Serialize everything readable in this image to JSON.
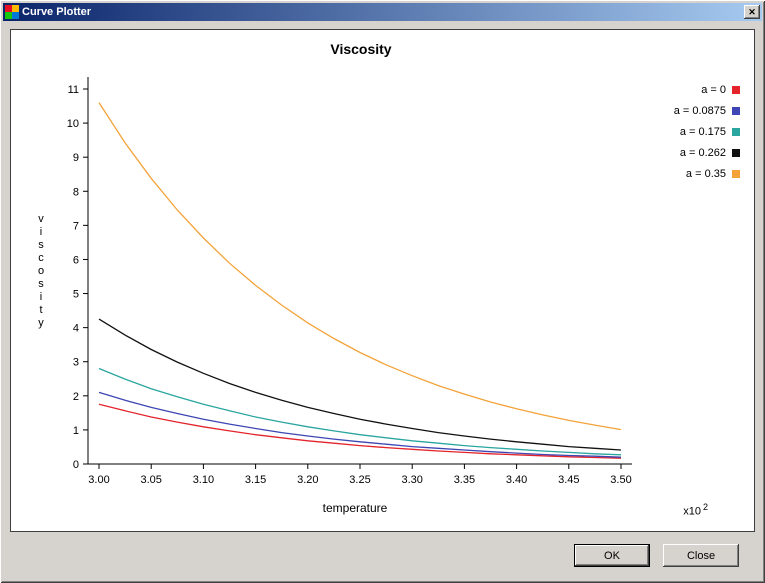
{
  "window": {
    "title": "Curve Plotter",
    "close_glyph": "✕"
  },
  "buttons": {
    "ok_label": "OK",
    "close_label": "Close"
  },
  "chart_data": {
    "type": "line",
    "title": "Viscosity",
    "xlabel": "temperature",
    "ylabel": "viscosity",
    "x_scale_label": "x10",
    "x_scale_exponent": "2",
    "xlim": [
      3.0,
      3.5
    ],
    "ylim": [
      0,
      11
    ],
    "grid": false,
    "legend_position": "outside-top-right",
    "xticks": [
      "3.00",
      "3.05",
      "3.10",
      "3.15",
      "3.20",
      "3.25",
      "3.30",
      "3.35",
      "3.40",
      "3.45",
      "3.50"
    ],
    "yticks": [
      0,
      1,
      2,
      3,
      4,
      5,
      6,
      7,
      8,
      9,
      10,
      11
    ],
    "x": [
      3.0,
      3.025,
      3.05,
      3.075,
      3.1,
      3.125,
      3.15,
      3.175,
      3.2,
      3.225,
      3.25,
      3.275,
      3.3,
      3.325,
      3.35,
      3.375,
      3.4,
      3.425,
      3.45,
      3.475,
      3.5
    ],
    "series": [
      {
        "name": "a = 0",
        "color": "#e3242b",
        "values": [
          1.75,
          1.56,
          1.38,
          1.23,
          1.09,
          0.97,
          0.86,
          0.77,
          0.68,
          0.61,
          0.54,
          0.48,
          0.43,
          0.38,
          0.34,
          0.3,
          0.27,
          0.24,
          0.21,
          0.19,
          0.17
        ]
      },
      {
        "name": "a = 0.0875",
        "color": "#3d46b2",
        "values": [
          2.1,
          1.87,
          1.66,
          1.48,
          1.31,
          1.17,
          1.04,
          0.92,
          0.82,
          0.73,
          0.65,
          0.58,
          0.51,
          0.46,
          0.41,
          0.36,
          0.32,
          0.28,
          0.25,
          0.23,
          0.2
        ]
      },
      {
        "name": "a = 0.175",
        "color": "#2aa5a0",
        "values": [
          2.8,
          2.49,
          2.21,
          1.97,
          1.75,
          1.56,
          1.38,
          1.23,
          1.09,
          0.97,
          0.86,
          0.77,
          0.68,
          0.61,
          0.54,
          0.48,
          0.43,
          0.38,
          0.34,
          0.3,
          0.27
        ]
      },
      {
        "name": "a = 0.262",
        "color": "#111111",
        "values": [
          4.25,
          3.78,
          3.36,
          2.99,
          2.66,
          2.36,
          2.1,
          1.87,
          1.66,
          1.48,
          1.31,
          1.17,
          1.04,
          0.92,
          0.82,
          0.73,
          0.65,
          0.58,
          0.51,
          0.46,
          0.41
        ]
      },
      {
        "name": "a = 0.35",
        "color": "#f3a33a",
        "values": [
          10.6,
          9.42,
          8.38,
          7.45,
          6.63,
          5.89,
          5.24,
          4.66,
          4.14,
          3.68,
          3.27,
          2.91,
          2.59,
          2.3,
          2.05,
          1.82,
          1.62,
          1.44,
          1.28,
          1.14,
          1.01
        ]
      }
    ]
  }
}
